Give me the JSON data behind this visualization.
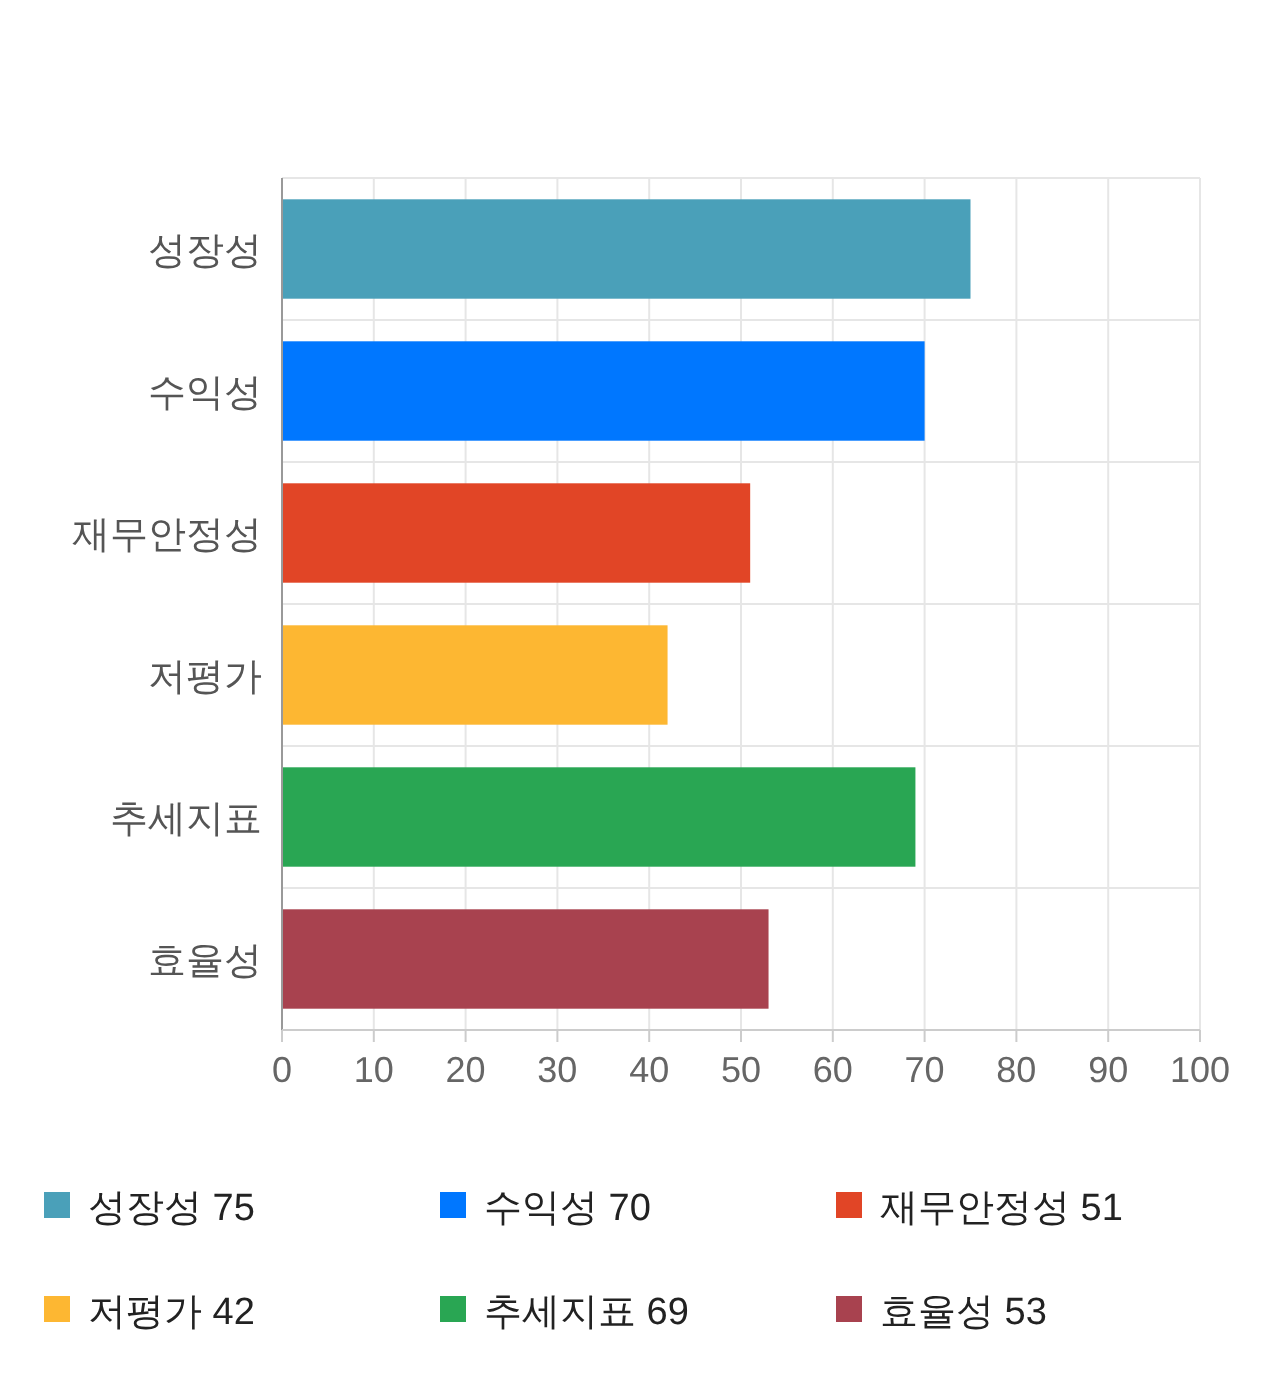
{
  "chart_data": {
    "type": "bar",
    "orientation": "horizontal",
    "stacked": true,
    "categories": [
      "성장성",
      "수익성",
      "재무안정성",
      "저평가",
      "추세지표",
      "효율성"
    ],
    "series": [
      {
        "name": "성장성 75",
        "color": "#4aa0b9",
        "values": [
          75,
          null,
          null,
          null,
          null,
          null
        ]
      },
      {
        "name": "수익성 70",
        "color": "#0077ff",
        "values": [
          null,
          70,
          null,
          null,
          null,
          null
        ]
      },
      {
        "name": "재무안정성 51",
        "color": "#e14526",
        "values": [
          null,
          null,
          51,
          null,
          null,
          null
        ]
      },
      {
        "name": "저평가 42",
        "color": "#fdb732",
        "values": [
          null,
          null,
          null,
          42,
          null,
          null
        ]
      },
      {
        "name": "추세지표 69",
        "color": "#29a653",
        "values": [
          null,
          null,
          null,
          null,
          69,
          null
        ]
      },
      {
        "name": "효율성 53",
        "color": "#a8424f",
        "values": [
          null,
          null,
          null,
          null,
          null,
          53
        ]
      }
    ],
    "xlim": [
      0,
      100
    ],
    "xticks": [
      0,
      10,
      20,
      30,
      40,
      50,
      60,
      70,
      80,
      90,
      100
    ],
    "grid": true,
    "legend": "bottom"
  }
}
